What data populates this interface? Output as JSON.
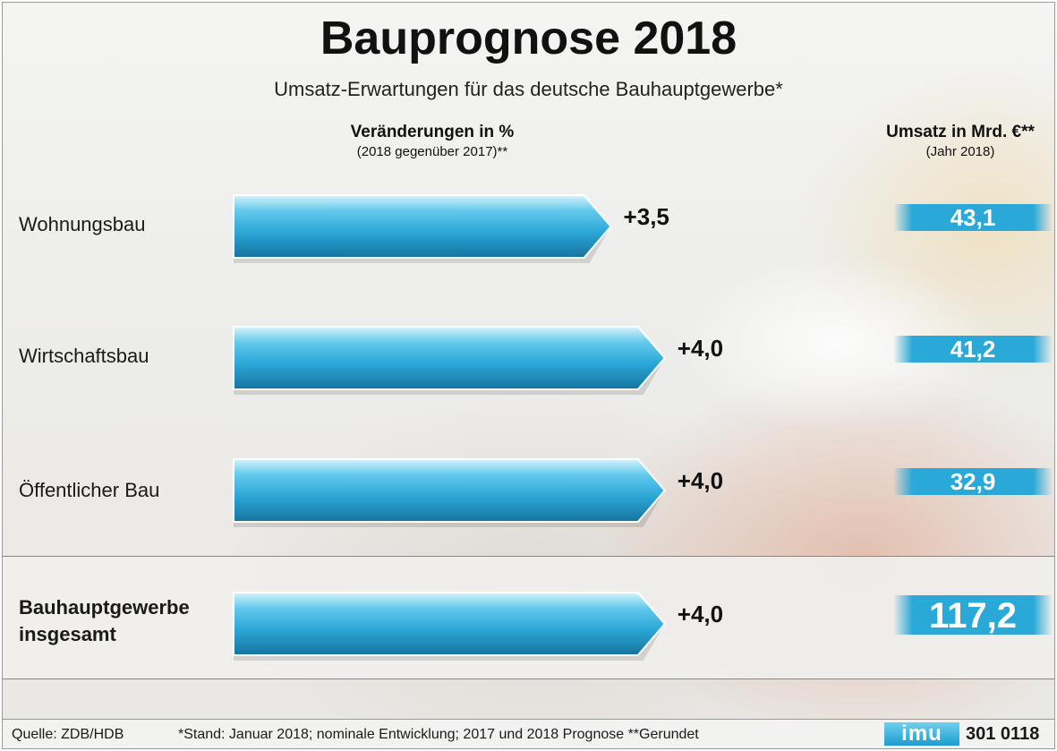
{
  "title": "Bauprognose 2018",
  "subtitle": "Umsatz-Erwartungen für das deutsche Bauhauptgewerbe*",
  "columns": {
    "change_header": "Veränderungen in %",
    "change_sub": "(2018 gegenüber 2017)**",
    "revenue_header": "Umsatz in Mrd. €**",
    "revenue_sub": "(Jahr 2018)"
  },
  "rows": [
    {
      "label": "Wohnungsbau",
      "label2": ""
    },
    {
      "label": "Wirtschaftsbau",
      "label2": ""
    },
    {
      "label": "Öffentlicher Bau",
      "label2": ""
    },
    {
      "label": "Bauhauptgewerbe",
      "label2": "insgesamt"
    }
  ],
  "chart_data": {
    "type": "bar",
    "orientation": "horizontal",
    "title": "Bauprognose 2018",
    "subtitle": "Umsatz-Erwartungen für das deutsche Bauhauptgewerbe*",
    "categories": [
      "Wohnungsbau",
      "Wirtschaftsbau",
      "Öffentlicher Bau",
      "Bauhauptgewerbe insgesamt"
    ],
    "series": [
      {
        "name": "Veränderungen in %",
        "values": [
          3.5,
          4.0,
          4.0,
          4.0
        ],
        "labels": [
          "+3,5",
          "+4,0",
          "+4,0",
          "+4,0"
        ]
      },
      {
        "name": "Umsatz in Mrd. €**",
        "values": [
          43.1,
          41.2,
          32.9,
          117.2
        ],
        "labels": [
          "43,1",
          "41,2",
          "32,9",
          "117,2"
        ]
      }
    ],
    "xlim": [
      0,
      4.5
    ],
    "grid": false,
    "colors": {
      "bar": "#3bb3dc",
      "bar_light": "#8fdcf4",
      "bar_dark": "#1a82b0",
      "value_tag": "#2aa9d8"
    }
  },
  "footer": {
    "source": "Quelle: ZDB/HDB",
    "note": "*Stand: Januar 2018; nominale Entwicklung; 2017 und 2018 Prognose    **Gerundet",
    "logo": "imu",
    "code": "301 0118"
  }
}
